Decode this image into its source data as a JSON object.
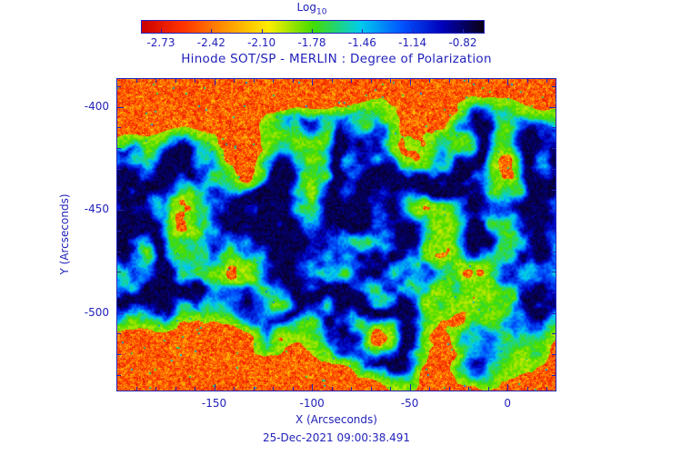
{
  "figure": {
    "title": "Hinode SOT/SP - MERLIN : Degree of Polarization",
    "timestamp": "25-Dec-2021 09:00:38.491"
  },
  "colorbar": {
    "label": "Log",
    "label_subscript": "10",
    "ticks": [
      "-2.73",
      "-2.42",
      "-2.10",
      "-1.78",
      "-1.46",
      "-1.14",
      "-0.82"
    ]
  },
  "axes": {
    "xlabel": "X (Arcseconds)",
    "ylabel": "Y (Arcseconds)",
    "xlim": [
      -200,
      25
    ],
    "ylim": [
      -538,
      -386
    ],
    "x_ticks": [
      -150,
      -100,
      -50,
      0
    ],
    "x_tick_labels": [
      "-150",
      "-100",
      "-50",
      "0"
    ],
    "y_ticks": [
      -400,
      -450,
      -500
    ],
    "y_tick_labels": [
      "-400",
      "-450",
      "-500"
    ],
    "minor_tick_step": 10
  },
  "colors": {
    "text": "#2222bb",
    "axis": "#2222bb",
    "background": "#ffffff"
  },
  "chart_data": {
    "type": "heatmap",
    "title": "Hinode SOT/SP - MERLIN : Degree of Polarization",
    "xlabel": "X (Arcseconds)",
    "ylabel": "Y (Arcseconds)",
    "x_range_arcsec": [
      -200,
      25
    ],
    "y_range_arcsec": [
      -538,
      -386
    ],
    "value_quantity": "Log10 degree of polarization",
    "value_range": [
      -2.73,
      -0.82
    ],
    "colorbar_tick_values": [
      -2.73,
      -2.42,
      -2.1,
      -1.78,
      -1.46,
      -1.14,
      -0.82
    ],
    "colormap": [
      [
        0.0,
        "#cc0000"
      ],
      [
        0.12,
        "#ff3300"
      ],
      [
        0.25,
        "#ff9900"
      ],
      [
        0.37,
        "#ffee00"
      ],
      [
        0.5,
        "#44dd00"
      ],
      [
        0.64,
        "#00ccee"
      ],
      [
        0.76,
        "#0055ff"
      ],
      [
        0.88,
        "#0000bb"
      ],
      [
        1.0,
        "#0a0014"
      ]
    ],
    "observation_date": "25-Dec-2021 09:00:38.491",
    "field_summary": "Speckled solar map dominated by weak polarization (red/orange, near -2.5) with a filamentary network of enhanced polarization (green/cyan/blue) across the centre and dark navy cores (up to about -0.8) marking the strongest magnetic concentrations",
    "noise": {
      "seed_speckle": 997,
      "seed_speckle2": 131,
      "seed_network": 31,
      "seed_envelope": 57,
      "net_scale": 0.014,
      "env_scale": 0.005
    }
  }
}
